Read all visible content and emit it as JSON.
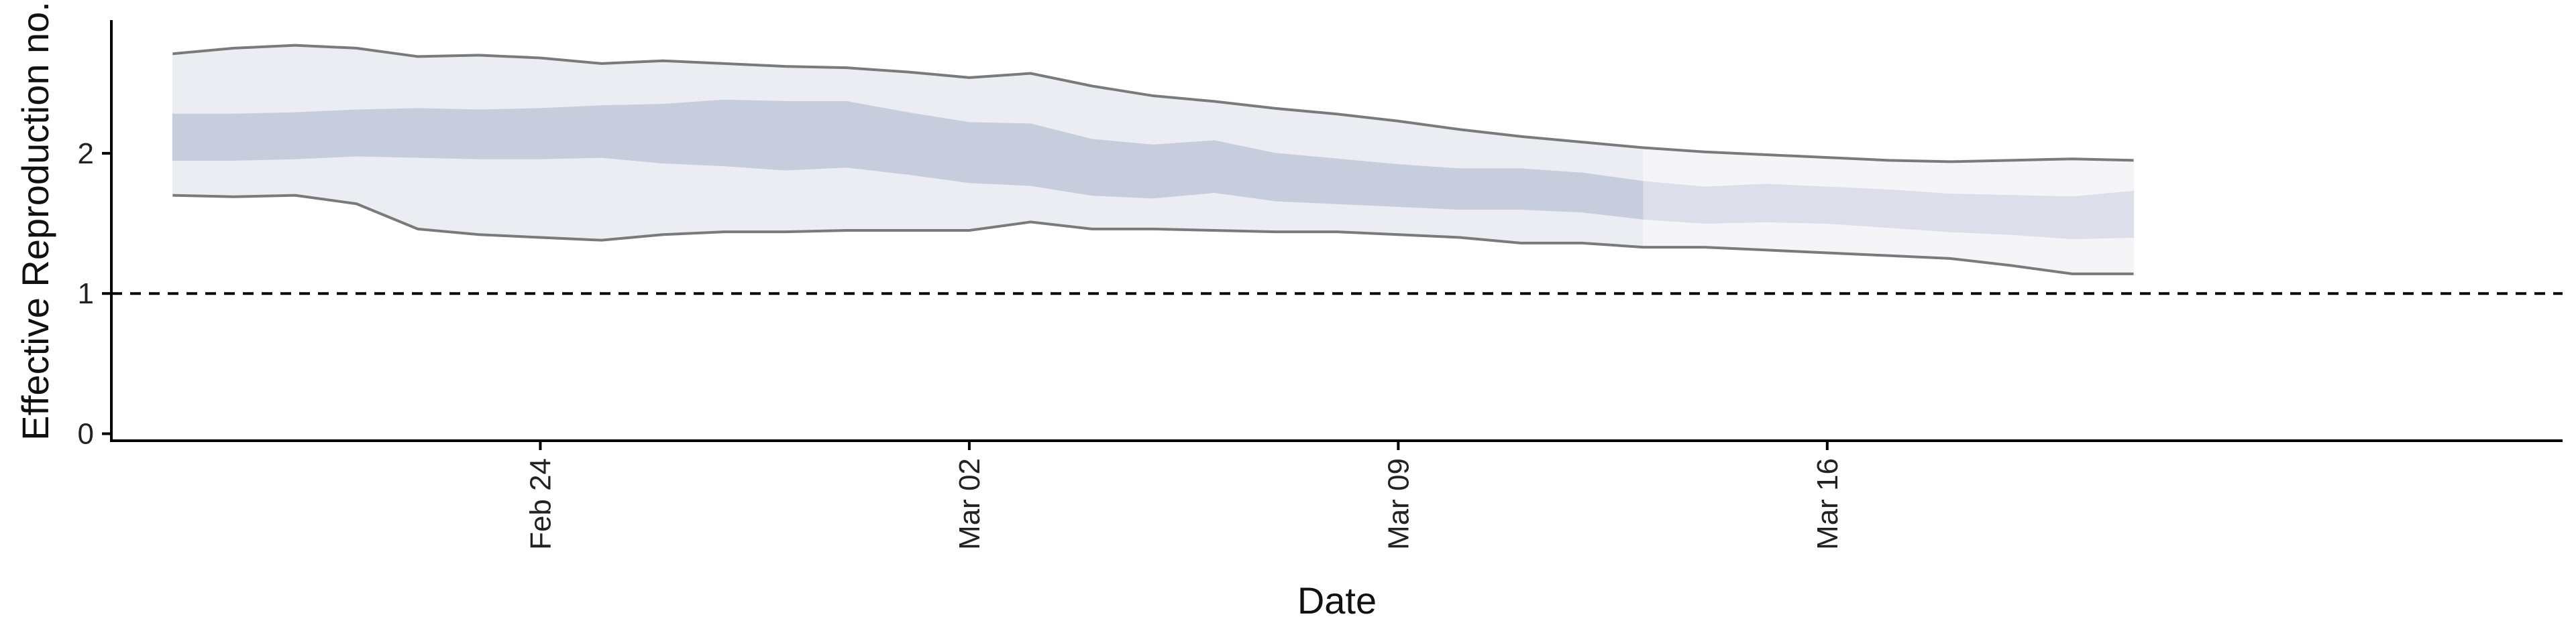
{
  "chart_data": {
    "type": "area",
    "xlabel": "Date",
    "ylabel": "Effective Reproduction no.",
    "ylim": [
      -0.05,
      2.95
    ],
    "y_ticks": [
      0,
      1,
      2
    ],
    "x_ticks": [
      {
        "date": "2020-02-24",
        "label": "Feb 24"
      },
      {
        "date": "2020-03-02",
        "label": "Mar 02"
      },
      {
        "date": "2020-03-09",
        "label": "Mar 09"
      },
      {
        "date": "2020-03-16",
        "label": "Mar 16"
      }
    ],
    "x_range": [
      "2020-02-17",
      "2020-03-28"
    ],
    "reference_line": {
      "y": 1,
      "style": "dashed"
    },
    "grid": false,
    "legend": "none",
    "dates": [
      "2020-02-18",
      "2020-02-19",
      "2020-02-20",
      "2020-02-21",
      "2020-02-22",
      "2020-02-23",
      "2020-02-24",
      "2020-02-25",
      "2020-02-26",
      "2020-02-27",
      "2020-02-28",
      "2020-02-29",
      "2020-03-01",
      "2020-03-02",
      "2020-03-03",
      "2020-03-04",
      "2020-03-05",
      "2020-03-06",
      "2020-03-07",
      "2020-03-08",
      "2020-03-09",
      "2020-03-10",
      "2020-03-11",
      "2020-03-12",
      "2020-03-13",
      "2020-03-14",
      "2020-03-15",
      "2020-03-16",
      "2020-03-17",
      "2020-03-18",
      "2020-03-19",
      "2020-03-20",
      "2020-03-21"
    ],
    "outer_upper": [
      2.71,
      2.75,
      2.77,
      2.75,
      2.69,
      2.7,
      2.68,
      2.64,
      2.66,
      2.64,
      2.62,
      2.61,
      2.58,
      2.54,
      2.57,
      2.48,
      2.41,
      2.37,
      2.32,
      2.28,
      2.23,
      2.17,
      2.12,
      2.08,
      2.04,
      2.01,
      1.99,
      1.97,
      1.95,
      1.94,
      1.95,
      1.96,
      1.95
    ],
    "inner_upper": [
      2.28,
      2.28,
      2.29,
      2.31,
      2.32,
      2.31,
      2.32,
      2.34,
      2.35,
      2.38,
      2.37,
      2.37,
      2.29,
      2.22,
      2.21,
      2.1,
      2.06,
      2.09,
      2.0,
      1.96,
      1.92,
      1.89,
      1.89,
      1.86,
      1.8,
      1.76,
      1.78,
      1.76,
      1.74,
      1.71,
      1.7,
      1.69,
      1.73
    ],
    "inner_lower": [
      1.95,
      1.95,
      1.96,
      1.98,
      1.97,
      1.96,
      1.96,
      1.97,
      1.93,
      1.91,
      1.88,
      1.9,
      1.85,
      1.79,
      1.77,
      1.7,
      1.68,
      1.72,
      1.66,
      1.64,
      1.62,
      1.6,
      1.6,
      1.58,
      1.53,
      1.5,
      1.51,
      1.5,
      1.47,
      1.44,
      1.42,
      1.39,
      1.4
    ],
    "outer_lower": [
      1.7,
      1.69,
      1.7,
      1.64,
      1.46,
      1.42,
      1.4,
      1.38,
      1.42,
      1.44,
      1.44,
      1.45,
      1.45,
      1.45,
      1.51,
      1.46,
      1.46,
      1.45,
      1.44,
      1.44,
      1.42,
      1.4,
      1.36,
      1.36,
      1.33,
      1.33,
      1.31,
      1.29,
      1.27,
      1.25,
      1.2,
      1.14,
      1.14
    ],
    "colors": {
      "outer_band": "#ecedf3",
      "inner_band": "#c7cddd",
      "outer_band_forecast": "#f5f5f8",
      "inner_band_forecast": "#dcdfe9",
      "bound_line": "#7a7a7a",
      "axis": "#000000"
    }
  }
}
